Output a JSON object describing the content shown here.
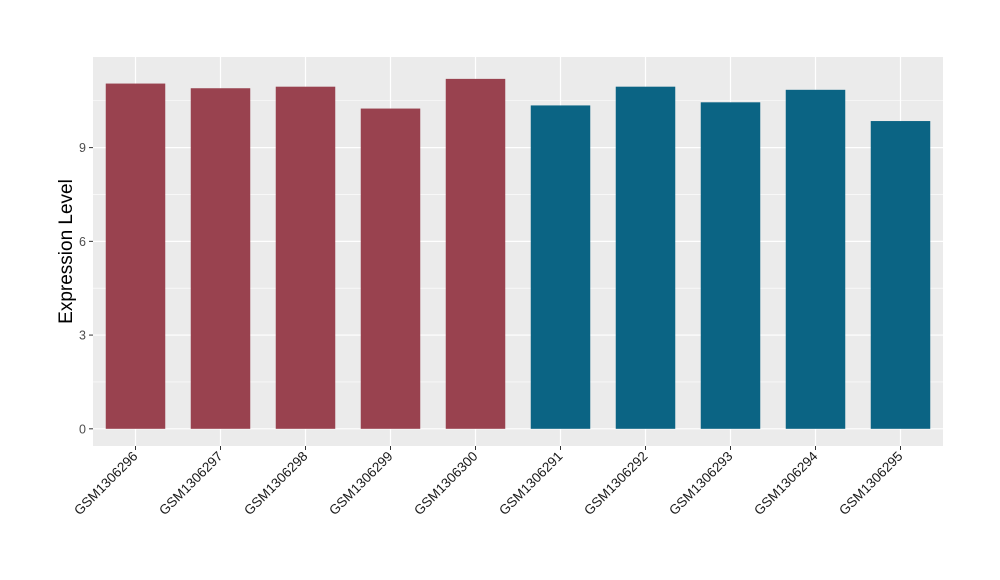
{
  "chart_data": {
    "type": "bar",
    "title": "",
    "xlabel": "",
    "ylabel": "Expression Level",
    "categories": [
      "GSM1306296",
      "GSM1306297",
      "GSM1306298",
      "GSM1306299",
      "GSM1306300",
      "GSM1306291",
      "GSM1306292",
      "GSM1306293",
      "GSM1306294",
      "GSM1306295"
    ],
    "values": [
      11.05,
      10.9,
      10.95,
      10.25,
      11.2,
      10.35,
      10.95,
      10.45,
      10.85,
      9.85
    ],
    "bar_colors": [
      "#99424f",
      "#99424f",
      "#99424f",
      "#99424f",
      "#99424f",
      "#0b6484",
      "#0b6484",
      "#0b6484",
      "#0b6484",
      "#0b6484"
    ],
    "ylim": [
      -0.55,
      11.9
    ],
    "yticks": [
      0,
      3,
      6,
      9
    ],
    "grid": true,
    "panel_background": "#ebebeb",
    "legend": "none"
  }
}
